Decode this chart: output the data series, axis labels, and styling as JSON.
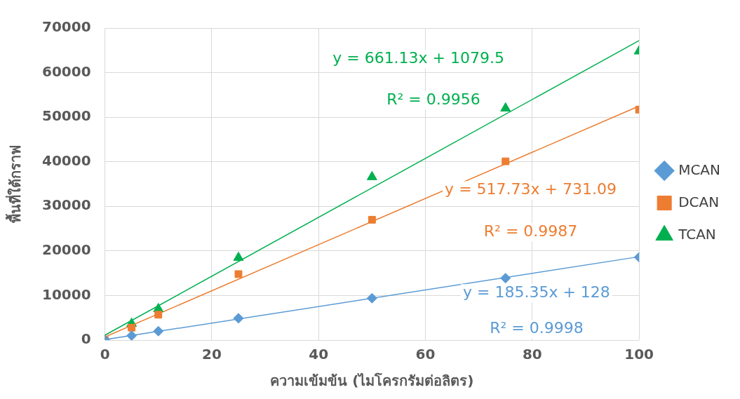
{
  "chart_data": {
    "type": "scatter",
    "xlabel": "ความเข้มข้น (ไมโครกรัมต่อลิตร)",
    "ylabel": "พื้นที่ใต้กราฟ",
    "xlim": [
      0,
      100
    ],
    "xticks": [
      0,
      20,
      40,
      60,
      80,
      100
    ],
    "ylim": [
      0,
      70000
    ],
    "yticks": [
      0,
      10000,
      20000,
      30000,
      40000,
      50000,
      60000,
      70000
    ],
    "grid": true,
    "legend": "right",
    "series": [
      {
        "name": "MCAN",
        "type": "scatter",
        "marker": "diamond",
        "color": "#5b9bd5",
        "x": [
          0,
          5,
          10,
          25,
          50,
          75,
          100
        ],
        "values": [
          0,
          1000,
          2000,
          4900,
          9400,
          13900,
          18600
        ]
      },
      {
        "name": "DCAN",
        "type": "scatter",
        "marker": "square",
        "color": "#ed7d31",
        "x": [
          0,
          5,
          10,
          25,
          50,
          75,
          100
        ],
        "values": [
          0,
          2800,
          5700,
          14800,
          27000,
          40100,
          51700
        ]
      },
      {
        "name": "TCAN",
        "type": "scatter",
        "marker": "triangle",
        "color": "#00b050",
        "x": [
          0,
          5,
          10,
          25,
          50,
          75,
          100
        ],
        "values": [
          0,
          3700,
          7000,
          18500,
          36600,
          52000,
          64800
        ]
      },
      {
        "type": "line",
        "marker": "none",
        "color": "#5b9bd5",
        "x": [
          0,
          100
        ],
        "values": [
          100,
          18700
        ]
      },
      {
        "type": "line",
        "marker": "none",
        "color": "#ed7d31",
        "x": [
          0,
          100
        ],
        "values": [
          700,
          52500
        ]
      },
      {
        "type": "line",
        "marker": "none",
        "color": "#00b050",
        "x": [
          0,
          100
        ],
        "values": [
          1100,
          67200
        ]
      }
    ],
    "annotations": [
      "y = 185.35x + 128",
      "R² = 0.9998",
      "y = 517.73x + 731.09",
      "R² = 0.9987",
      "y = 661.13x + 1079.5",
      "R² = 0.9956"
    ]
  }
}
